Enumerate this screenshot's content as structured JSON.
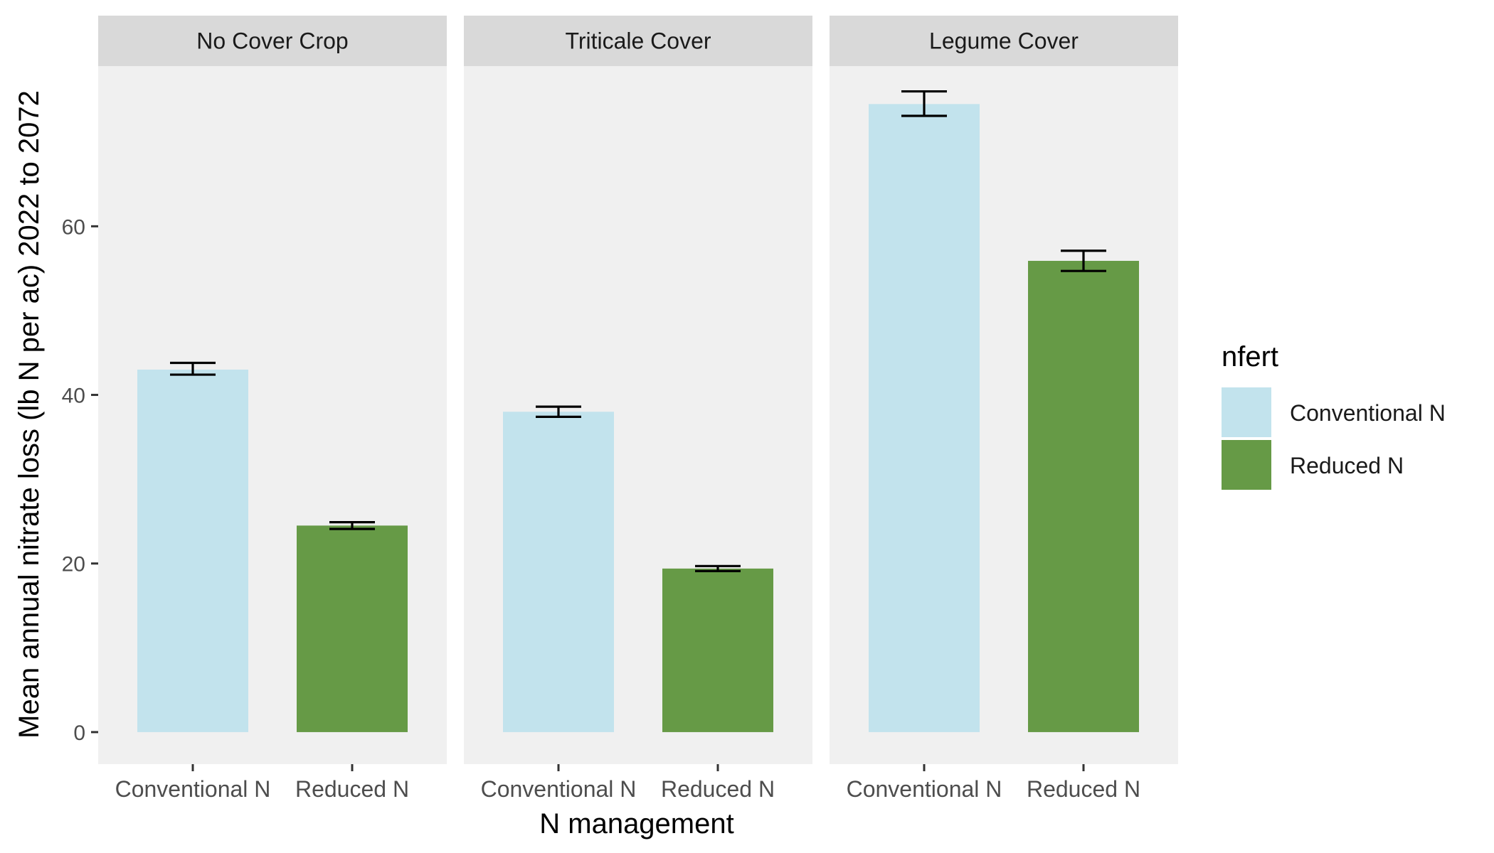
{
  "chart_data": {
    "type": "bar",
    "xlabel": "N management",
    "ylabel": "Mean annual nitrate loss (lb N per ac) 2022 to 2072",
    "ylim": [
      -3.8,
      79
    ],
    "yticks": [
      0,
      20,
      40,
      60
    ],
    "grid": false,
    "legend": {
      "title": "nfert",
      "placement": "right",
      "entries": [
        {
          "label": "Conventional N",
          "color": "#c2e3ed"
        },
        {
          "label": "Reduced N",
          "color": "#669a46"
        }
      ]
    },
    "panel_background": "#f0f0f0",
    "strip_background": "#d9d9d9",
    "categories": [
      "Conventional N",
      "Reduced N"
    ],
    "facets": [
      {
        "label": "No Cover Crop",
        "bars": [
          {
            "category": "Conventional N",
            "value": 43.0,
            "err_low": 42.4,
            "err_high": 43.8
          },
          {
            "category": "Reduced N",
            "value": 24.5,
            "err_low": 24.1,
            "err_high": 24.9
          }
        ]
      },
      {
        "label": "Triticale Cover",
        "bars": [
          {
            "category": "Conventional N",
            "value": 38.0,
            "err_low": 37.4,
            "err_high": 38.6
          },
          {
            "category": "Reduced N",
            "value": 19.4,
            "err_low": 19.1,
            "err_high": 19.7
          }
        ]
      },
      {
        "label": "Legume Cover",
        "bars": [
          {
            "category": "Conventional N",
            "value": 74.5,
            "err_low": 73.1,
            "err_high": 76.0
          },
          {
            "category": "Reduced N",
            "value": 55.9,
            "err_low": 54.7,
            "err_high": 57.1
          }
        ]
      }
    ]
  }
}
